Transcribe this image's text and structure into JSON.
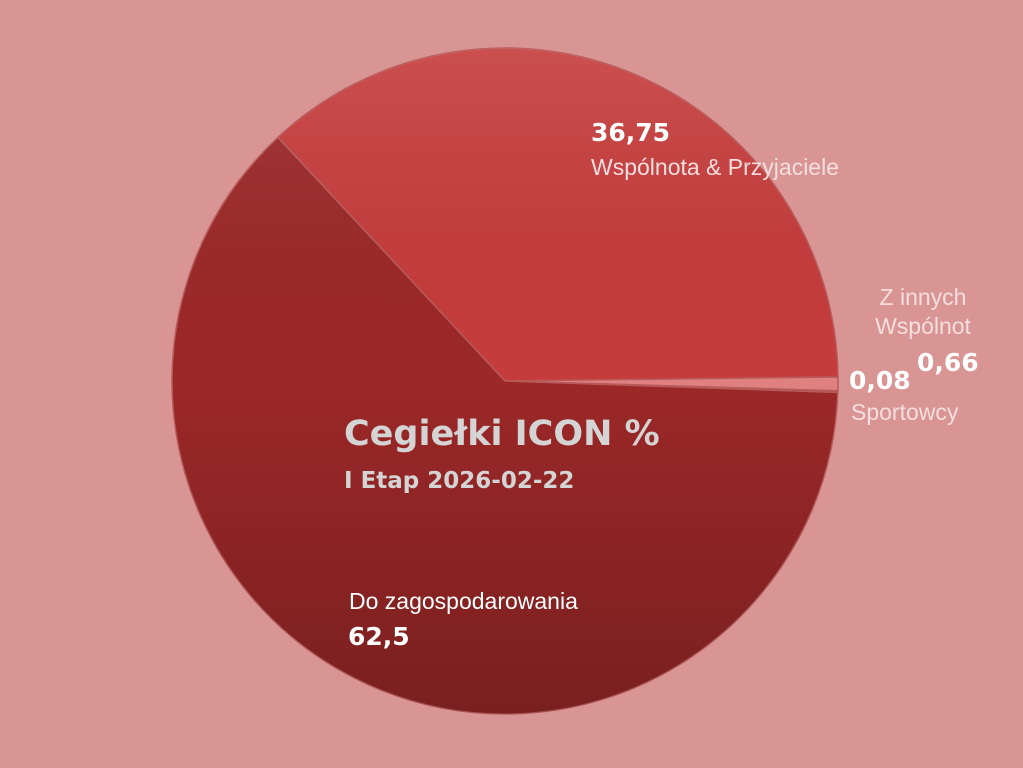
{
  "chart_data": {
    "type": "pie",
    "title": "Cegiełki ICON %",
    "subtitle": "I Etap 2026-02-22",
    "slices": [
      {
        "name": "Wspólnota & Przyjaciele",
        "value": 36.75,
        "value_label": "36,75",
        "color": "#c23a3a"
      },
      {
        "name": "Z innych Wspólnot",
        "value": 0.66,
        "value_label": "0,66",
        "color": "#e08080"
      },
      {
        "name": "Sportowcy",
        "value": 0.08,
        "value_label": "0,08",
        "color": "#d36060"
      },
      {
        "name": "Do zagospodarowania",
        "value": 62.5,
        "value_label": "62,5",
        "color": "#a52a2a"
      }
    ],
    "legend": "none"
  }
}
